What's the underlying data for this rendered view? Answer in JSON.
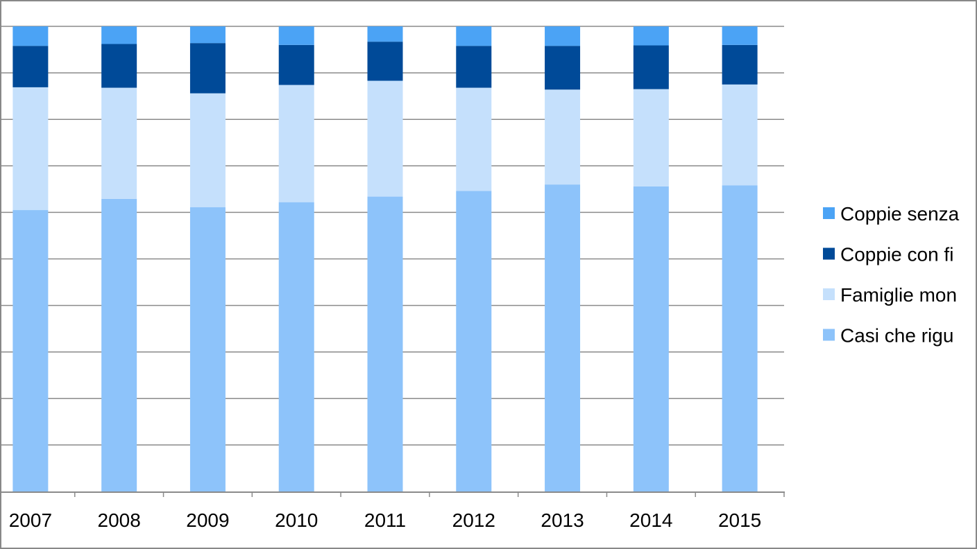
{
  "chart_data": {
    "type": "bar",
    "stacked": true,
    "normalized": true,
    "categories": [
      "2007",
      "2008",
      "2009",
      "2010",
      "2011",
      "2012",
      "2013",
      "2014",
      "2015"
    ],
    "series": [
      {
        "name": "Casi che rigu",
        "color": "#8DC3FA",
        "values": [
          60.5,
          62.9,
          61.1,
          62.2,
          63.4,
          64.6,
          66.0,
          65.6,
          65.8
        ]
      },
      {
        "name": "Famiglie mon",
        "color": "#C5E0FC",
        "values": [
          26.4,
          23.9,
          24.5,
          25.2,
          24.9,
          22.2,
          20.4,
          20.9,
          21.7
        ]
      },
      {
        "name": "Coppie con fi",
        "color": "#004A98",
        "values": [
          8.9,
          9.4,
          10.8,
          8.6,
          8.4,
          9.0,
          9.4,
          9.4,
          8.5
        ]
      },
      {
        "name": "Coppie senza",
        "color": "#4BA3F5",
        "values": [
          4.2,
          3.8,
          3.6,
          4.0,
          3.3,
          4.2,
          4.2,
          4.1,
          4.0
        ]
      }
    ],
    "ylim": [
      0,
      100
    ],
    "grid": true,
    "legend_position": "right"
  }
}
